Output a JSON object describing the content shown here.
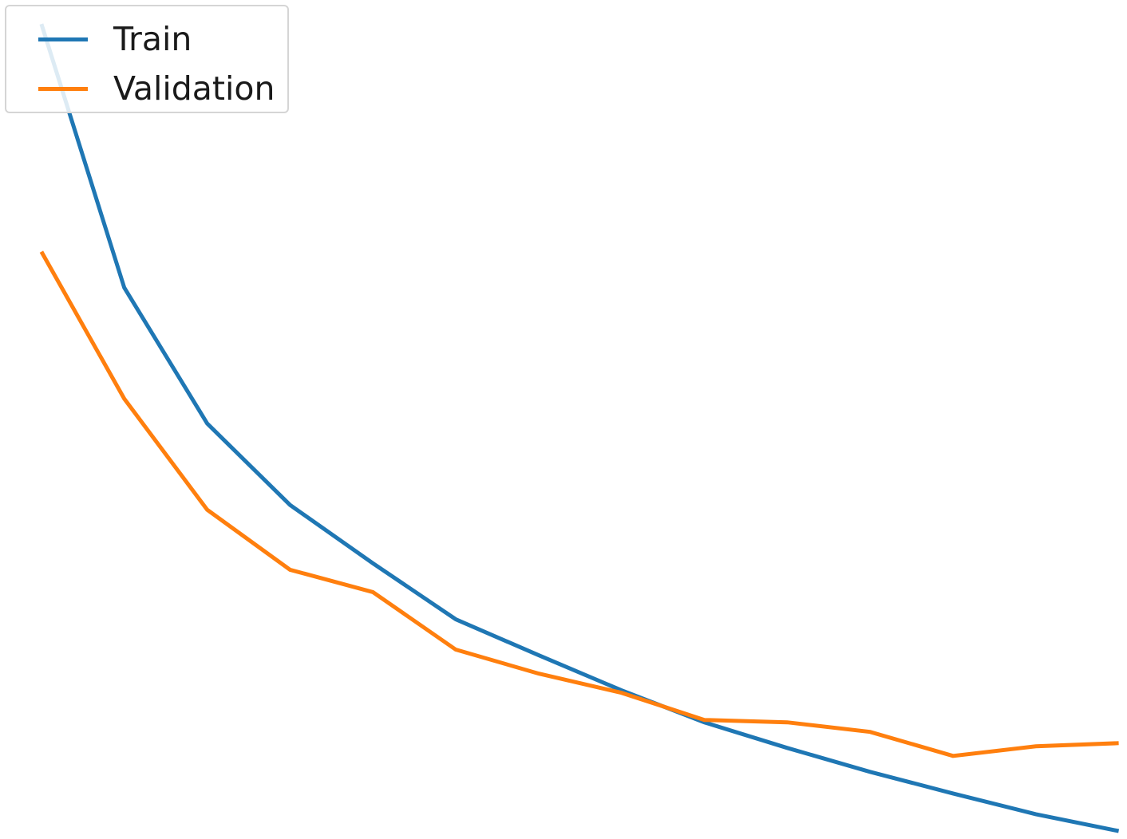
{
  "chart_data": {
    "type": "line",
    "title": "",
    "xlabel": "",
    "ylabel": "",
    "x": [
      1,
      2,
      3,
      4,
      5,
      6,
      7,
      8,
      9,
      10,
      11,
      12,
      13,
      14
    ],
    "xlim": [
      0.5,
      14.1
    ],
    "ylim": [
      0,
      10.5
    ],
    "grid": false,
    "legend_position": "upper-left",
    "series": [
      {
        "name": "Train",
        "color": "#1f77b4",
        "values": [
          10.2,
          6.9,
          5.2,
          4.18,
          3.45,
          2.75,
          2.3,
          1.86,
          1.46,
          1.14,
          0.84,
          0.57,
          0.31,
          0.1
        ]
      },
      {
        "name": "Validation",
        "color": "#ff7f0e",
        "values": [
          7.35,
          5.51,
          4.12,
          3.37,
          3.09,
          2.37,
          2.07,
          1.83,
          1.49,
          1.46,
          1.34,
          1.04,
          1.16,
          1.2
        ]
      }
    ]
  }
}
